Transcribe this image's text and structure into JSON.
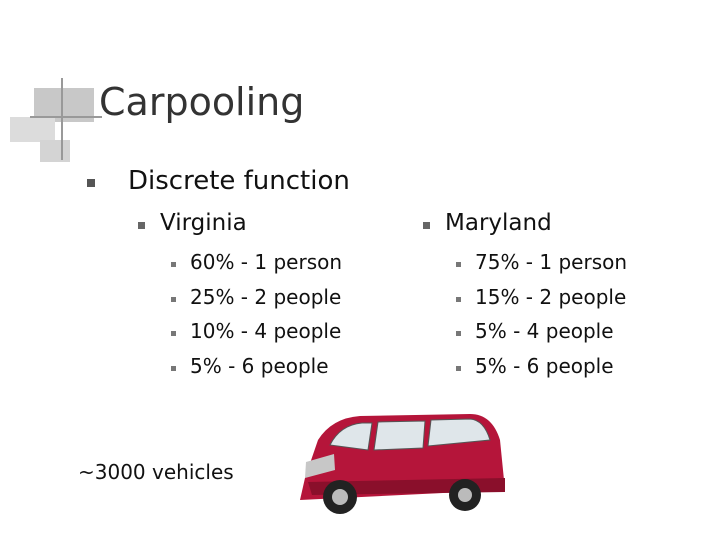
{
  "title": "Carpooling",
  "bullet": "Discrete function",
  "columns": [
    {
      "heading": "Virginia",
      "items": [
        "60% - 1 person",
        "25% - 2 people",
        "10% - 4 people",
        "5% - 6 people"
      ]
    },
    {
      "heading": "Maryland",
      "items": [
        "75% - 1 person",
        "15% - 2 people",
        "5% - 4 people",
        "5% - 6 people"
      ]
    }
  ],
  "note": "~3000 vehicles"
}
